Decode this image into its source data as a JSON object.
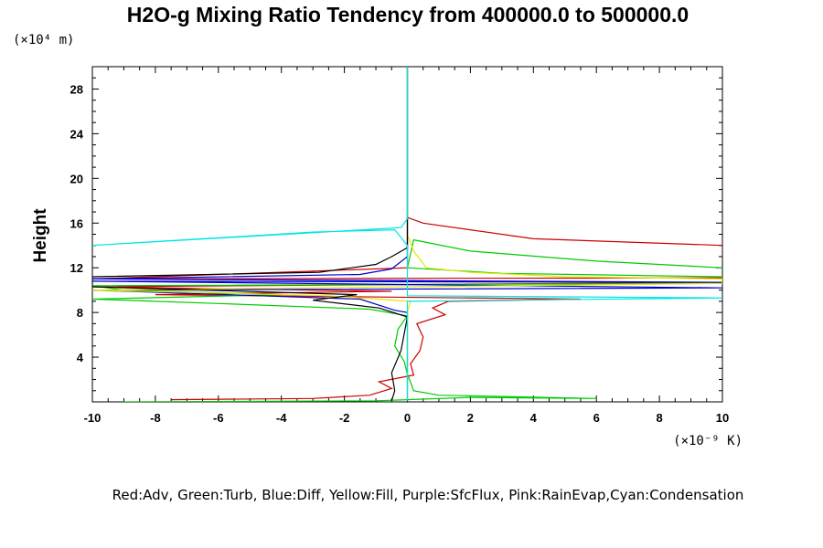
{
  "chart_data": {
    "type": "line",
    "title": "H2O-g Mixing Ratio Tendency from 400000.0 to 500000.0",
    "ylabel": "Height",
    "xlabel": "",
    "y_unit": "(×10⁴ m)",
    "x_unit": "(×10⁻⁹ K)",
    "legend_text": "Red:Adv,  Green:Turb,  Blue:Diff,  Yellow:Fill,  Purple:SfcFlux,  Pink:RainEvap,Cyan:Condensation",
    "xlim": [
      -10,
      10
    ],
    "ylim": [
      0,
      30
    ],
    "x_ticks": [
      -10,
      -8,
      -6,
      -4,
      -2,
      0,
      2,
      4,
      6,
      8,
      10
    ],
    "y_ticks": [
      4,
      8,
      12,
      16,
      20,
      24,
      28
    ],
    "grid": false,
    "series": [
      {
        "name": "Red:Adv",
        "color": "#cc0000",
        "points": [
          [
            -7.5,
            0.2
          ],
          [
            -3,
            0.3
          ],
          [
            -1.2,
            0.6
          ],
          [
            -0.5,
            1.2
          ],
          [
            -0.9,
            1.8
          ],
          [
            0.2,
            2.4
          ],
          [
            0.1,
            3.4
          ],
          [
            0.4,
            4.6
          ],
          [
            0.5,
            5.8
          ],
          [
            0.3,
            7.0
          ],
          [
            1.2,
            7.8
          ],
          [
            0.8,
            8.4
          ],
          [
            1.3,
            9
          ],
          [
            5.5,
            9.2
          ],
          [
            -8,
            9.6
          ],
          [
            -0.5,
            9.9
          ],
          [
            -10,
            10.3
          ],
          [
            10,
            10.7
          ],
          [
            10,
            11.1
          ],
          [
            -10,
            11.0
          ],
          [
            0,
            12
          ],
          [
            0,
            14
          ],
          [
            0,
            16.5
          ],
          [
            0.5,
            16
          ],
          [
            4,
            14.6
          ],
          [
            10,
            14.0
          ]
        ]
      },
      {
        "name": "Green:Turb",
        "color": "#00cc00",
        "points": [
          [
            -9,
            0.0
          ],
          [
            -1,
            0.1
          ],
          [
            0,
            0.2
          ],
          [
            2,
            0.4
          ],
          [
            6,
            0.3
          ],
          [
            1,
            0.6
          ],
          [
            0.2,
            1.0
          ],
          [
            0,
            2.5
          ],
          [
            -0.1,
            3.6
          ],
          [
            -0.4,
            5
          ],
          [
            -0.3,
            6.5
          ],
          [
            0,
            7.7
          ],
          [
            -1.2,
            8.3
          ],
          [
            -6,
            8.8
          ],
          [
            -10,
            9.2
          ],
          [
            -4,
            9.6
          ],
          [
            -9,
            10.0
          ],
          [
            -10,
            10.4
          ],
          [
            10,
            10.6
          ],
          [
            10,
            11.2
          ],
          [
            3,
            11.5
          ],
          [
            0,
            12
          ],
          [
            0.2,
            14.5
          ],
          [
            2,
            13.5
          ],
          [
            6,
            12.6
          ],
          [
            10,
            12.0
          ]
        ]
      },
      {
        "name": "Blue:Diff",
        "color": "#0000cc",
        "points": [
          [
            0,
            0.1
          ],
          [
            0,
            1
          ],
          [
            0,
            2
          ],
          [
            0,
            4
          ],
          [
            0,
            6
          ],
          [
            0,
            8
          ],
          [
            -0.4,
            8.2
          ],
          [
            -1.5,
            9.2
          ],
          [
            -10,
            10.0
          ],
          [
            10,
            10.2
          ],
          [
            -10,
            10.8
          ],
          [
            10,
            10.7
          ],
          [
            -10,
            11.0
          ],
          [
            -1.5,
            11.4
          ],
          [
            -0.5,
            11.9
          ],
          [
            0,
            13
          ],
          [
            0,
            14
          ],
          [
            0,
            16
          ],
          [
            0,
            28
          ],
          [
            0,
            30
          ]
        ]
      },
      {
        "name": "Yellow:Fill",
        "color": "#e6e600",
        "points": [
          [
            0,
            0.2
          ],
          [
            0,
            3
          ],
          [
            0,
            6
          ],
          [
            0,
            8
          ],
          [
            0.1,
            9.0
          ],
          [
            -2.5,
            9.5
          ],
          [
            -10,
            10.0
          ],
          [
            10,
            10.6
          ],
          [
            10,
            11.0
          ],
          [
            5,
            11.2
          ],
          [
            2,
            11.6
          ],
          [
            0.6,
            12.0
          ],
          [
            0.2,
            13.5
          ],
          [
            0,
            15
          ],
          [
            0,
            28
          ],
          [
            0,
            30
          ]
        ]
      },
      {
        "name": "Black",
        "color": "#000000",
        "points": [
          [
            -0.5,
            0.1
          ],
          [
            -0.4,
            1
          ],
          [
            -0.5,
            2.6
          ],
          [
            -0.2,
            4.6
          ],
          [
            0,
            7.6
          ],
          [
            -0.9,
            8.4
          ],
          [
            -3,
            9.1
          ],
          [
            -1.6,
            9.6
          ],
          [
            -10,
            10.3
          ],
          [
            -10,
            11.2
          ],
          [
            -2.8,
            11.6
          ],
          [
            -1,
            12.3
          ],
          [
            -0.5,
            13.0
          ],
          [
            0,
            13.8
          ],
          [
            0,
            30
          ]
        ]
      },
      {
        "name": "Cyan:Condensation",
        "color": "#00e5e5",
        "points": [
          [
            0,
            0.1
          ],
          [
            0,
            2
          ],
          [
            0,
            4
          ],
          [
            0,
            6
          ],
          [
            0,
            8
          ],
          [
            0,
            9
          ],
          [
            3,
            9.1
          ],
          [
            10,
            9.3
          ],
          [
            0,
            9.5
          ],
          [
            0,
            12
          ],
          [
            0,
            14
          ],
          [
            -0.4,
            15.4
          ],
          [
            -3,
            15.2
          ],
          [
            -10,
            14.0
          ],
          [
            -0.2,
            15.6
          ],
          [
            0,
            16.4
          ],
          [
            0,
            30
          ]
        ]
      }
    ]
  }
}
